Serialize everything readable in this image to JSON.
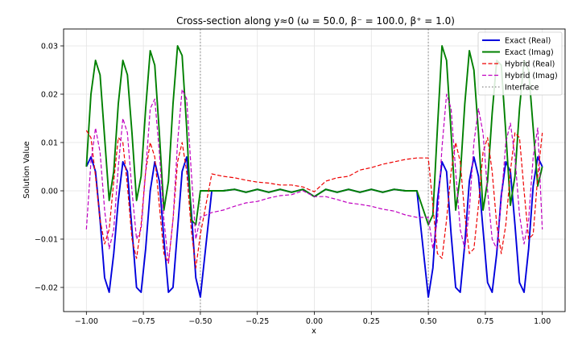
{
  "chart_data": {
    "type": "line",
    "title": "Cross-section along y≈0 (ω = 50.0, β⁻ = 100.0, β⁺ = 1.0)",
    "xlabel": "x",
    "ylabel": "Solution Value",
    "xlim": [
      -1.1,
      1.1
    ],
    "ylim": [
      -0.025,
      0.0335
    ],
    "xticks": [
      -1.0,
      -0.75,
      -0.5,
      -0.25,
      0.0,
      0.25,
      0.5,
      0.75,
      1.0
    ],
    "xtick_labels": [
      "−1.00",
      "−0.75",
      "−0.50",
      "−0.25",
      "0.00",
      "0.25",
      "0.50",
      "0.75",
      "1.00"
    ],
    "yticks": [
      -0.02,
      -0.01,
      0.0,
      0.01,
      0.02,
      0.03
    ],
    "ytick_labels": [
      "−0.02",
      "−0.01",
      "0.00",
      "0.01",
      "0.02",
      "0.03"
    ],
    "grid": true,
    "legend_position": "top-right",
    "interface_x": [
      -0.5,
      0.5
    ],
    "series": [
      {
        "name": "Exact (Real)",
        "color": "#0000dd",
        "style": "solid",
        "x": [
          -1.0,
          -0.98,
          -0.96,
          -0.94,
          -0.92,
          -0.9,
          -0.88,
          -0.86,
          -0.84,
          -0.82,
          -0.8,
          -0.78,
          -0.76,
          -0.74,
          -0.72,
          -0.7,
          -0.68,
          -0.66,
          -0.64,
          -0.62,
          -0.6,
          -0.58,
          -0.56,
          -0.54,
          -0.52,
          -0.5,
          -0.45,
          -0.4,
          -0.35,
          -0.3,
          -0.25,
          -0.2,
          -0.15,
          -0.1,
          -0.05,
          0.0,
          0.05,
          0.1,
          0.15,
          0.2,
          0.25,
          0.3,
          0.35,
          0.4,
          0.45,
          0.5,
          0.52,
          0.54,
          0.56,
          0.58,
          0.6,
          0.62,
          0.64,
          0.66,
          0.68,
          0.7,
          0.72,
          0.74,
          0.76,
          0.78,
          0.8,
          0.82,
          0.84,
          0.86,
          0.88,
          0.9,
          0.92,
          0.94,
          0.96,
          0.98,
          1.0
        ],
        "y": [
          0.005,
          0.007,
          0.004,
          -0.006,
          -0.018,
          -0.021,
          -0.013,
          -0.002,
          0.006,
          0.004,
          -0.008,
          -0.02,
          -0.021,
          -0.012,
          0.0,
          0.006,
          0.002,
          -0.01,
          -0.021,
          -0.02,
          -0.008,
          0.004,
          0.007,
          -0.004,
          -0.018,
          -0.022,
          0.0,
          0.0,
          0.0003,
          -0.0003,
          0.0003,
          -0.0003,
          0.0003,
          -0.0003,
          0.0003,
          -0.0012,
          0.0003,
          -0.0003,
          0.0003,
          -0.0003,
          0.0003,
          -0.0003,
          0.0003,
          0.0,
          0.0,
          -0.022,
          -0.016,
          -0.002,
          0.006,
          0.004,
          -0.009,
          -0.02,
          -0.021,
          -0.011,
          0.002,
          0.007,
          0.003,
          -0.008,
          -0.019,
          -0.021,
          -0.013,
          -0.001,
          0.006,
          0.004,
          -0.007,
          -0.019,
          -0.021,
          -0.012,
          0.001,
          0.007,
          0.005
        ]
      },
      {
        "name": "Exact (Imag)",
        "color": "#008000",
        "style": "solid",
        "x": [
          -1.0,
          -0.98,
          -0.96,
          -0.94,
          -0.92,
          -0.9,
          -0.88,
          -0.86,
          -0.84,
          -0.82,
          -0.8,
          -0.78,
          -0.76,
          -0.74,
          -0.72,
          -0.7,
          -0.68,
          -0.66,
          -0.64,
          -0.62,
          -0.6,
          -0.58,
          -0.56,
          -0.54,
          -0.52,
          -0.5,
          -0.45,
          -0.4,
          -0.35,
          -0.3,
          -0.25,
          -0.2,
          -0.15,
          -0.1,
          -0.05,
          0.0,
          0.05,
          0.1,
          0.15,
          0.2,
          0.25,
          0.3,
          0.35,
          0.4,
          0.45,
          0.5,
          0.52,
          0.54,
          0.56,
          0.58,
          0.6,
          0.62,
          0.64,
          0.66,
          0.68,
          0.7,
          0.72,
          0.74,
          0.76,
          0.78,
          0.8,
          0.82,
          0.84,
          0.86,
          0.88,
          0.9,
          0.92,
          0.94,
          0.96,
          0.98,
          1.0
        ],
        "y": [
          0.005,
          0.02,
          0.027,
          0.024,
          0.011,
          -0.002,
          0.004,
          0.018,
          0.027,
          0.024,
          0.012,
          -0.002,
          0.003,
          0.017,
          0.029,
          0.026,
          0.012,
          -0.004,
          0.002,
          0.018,
          0.03,
          0.028,
          0.013,
          -0.006,
          -0.007,
          0.0,
          0.0,
          0.0,
          0.0003,
          -0.0003,
          0.0003,
          -0.0003,
          0.0003,
          -0.0003,
          0.0003,
          -0.0012,
          0.0003,
          -0.0003,
          0.0003,
          -0.0003,
          0.0003,
          -0.0003,
          0.0003,
          0.0,
          0.0,
          -0.007,
          -0.005,
          0.013,
          0.03,
          0.027,
          0.012,
          -0.004,
          0.003,
          0.018,
          0.029,
          0.025,
          0.012,
          -0.004,
          0.002,
          0.016,
          0.027,
          0.026,
          0.012,
          -0.003,
          0.003,
          0.017,
          0.027,
          0.025,
          0.013,
          0.001,
          0.005
        ]
      },
      {
        "name": "Hybrid (Real)",
        "color": "#ee0000",
        "style": "dashed",
        "x": [
          -1.0,
          -0.98,
          -0.96,
          -0.94,
          -0.92,
          -0.9,
          -0.88,
          -0.86,
          -0.84,
          -0.82,
          -0.8,
          -0.78,
          -0.76,
          -0.74,
          -0.72,
          -0.7,
          -0.68,
          -0.66,
          -0.64,
          -0.62,
          -0.6,
          -0.58,
          -0.56,
          -0.54,
          -0.52,
          -0.5,
          -0.45,
          -0.4,
          -0.35,
          -0.3,
          -0.25,
          -0.2,
          -0.15,
          -0.1,
          -0.05,
          0.0,
          0.05,
          0.1,
          0.15,
          0.2,
          0.25,
          0.3,
          0.35,
          0.4,
          0.45,
          0.5,
          0.52,
          0.54,
          0.56,
          0.58,
          0.6,
          0.62,
          0.64,
          0.66,
          0.68,
          0.7,
          0.72,
          0.74,
          0.76,
          0.78,
          0.8,
          0.82,
          0.84,
          0.86,
          0.88,
          0.9,
          0.92,
          0.94,
          0.96,
          0.98,
          1.0
        ],
        "y": [
          0.0125,
          0.011,
          0.003,
          -0.006,
          -0.011,
          -0.008,
          0.002,
          0.011,
          0.01,
          0.001,
          -0.01,
          -0.014,
          -0.007,
          0.004,
          0.01,
          0.007,
          -0.003,
          -0.013,
          -0.015,
          -0.006,
          0.006,
          0.01,
          0.004,
          -0.008,
          -0.016,
          -0.009,
          0.0035,
          0.003,
          0.0027,
          0.0022,
          0.0018,
          0.0016,
          0.0012,
          0.0012,
          0.0008,
          -0.0002,
          0.002,
          0.0027,
          0.003,
          0.0043,
          0.0048,
          0.0055,
          0.006,
          0.0065,
          0.0068,
          0.0068,
          -0.003,
          -0.013,
          -0.014,
          -0.006,
          0.004,
          0.01,
          0.006,
          -0.005,
          -0.013,
          -0.012,
          -0.003,
          0.008,
          0.011,
          0.004,
          -0.007,
          -0.013,
          -0.007,
          0.004,
          0.012,
          0.011,
          0.0,
          -0.01,
          -0.009,
          0.003,
          0.012
        ]
      },
      {
        "name": "Hybrid (Imag)",
        "color": "#c000c0",
        "style": "dashed",
        "x": [
          -1.0,
          -0.98,
          -0.96,
          -0.94,
          -0.92,
          -0.9,
          -0.88,
          -0.86,
          -0.84,
          -0.82,
          -0.8,
          -0.78,
          -0.76,
          -0.74,
          -0.72,
          -0.7,
          -0.68,
          -0.66,
          -0.64,
          -0.62,
          -0.6,
          -0.58,
          -0.56,
          -0.54,
          -0.52,
          -0.5,
          -0.45,
          -0.4,
          -0.35,
          -0.3,
          -0.25,
          -0.2,
          -0.15,
          -0.1,
          -0.05,
          0.0,
          0.05,
          0.1,
          0.15,
          0.2,
          0.25,
          0.3,
          0.35,
          0.4,
          0.45,
          0.5,
          0.52,
          0.54,
          0.56,
          0.58,
          0.6,
          0.62,
          0.64,
          0.66,
          0.68,
          0.7,
          0.72,
          0.74,
          0.76,
          0.78,
          0.8,
          0.82,
          0.84,
          0.86,
          0.88,
          0.9,
          0.92,
          0.94,
          0.96,
          0.98,
          1.0
        ],
        "y": [
          -0.008,
          0.006,
          0.013,
          0.008,
          -0.004,
          -0.012,
          -0.008,
          0.005,
          0.015,
          0.012,
          0.0,
          -0.01,
          -0.008,
          0.004,
          0.017,
          0.019,
          0.008,
          -0.006,
          -0.015,
          -0.006,
          0.01,
          0.021,
          0.019,
          0.004,
          -0.01,
          -0.0055,
          -0.0045,
          -0.004,
          -0.0032,
          -0.0025,
          -0.0022,
          -0.0015,
          -0.001,
          -0.0008,
          0.0,
          -0.0012,
          -0.0012,
          -0.0018,
          -0.0025,
          -0.0028,
          -0.0032,
          -0.0038,
          -0.0042,
          -0.005,
          -0.0055,
          -0.0055,
          -0.012,
          -0.006,
          0.009,
          0.02,
          0.017,
          0.004,
          -0.008,
          -0.012,
          -0.004,
          0.01,
          0.017,
          0.012,
          0.0,
          -0.01,
          -0.012,
          -0.002,
          0.01,
          0.014,
          0.007,
          -0.005,
          -0.011,
          -0.006,
          0.007,
          0.013,
          -0.008
        ]
      }
    ],
    "legend": [
      {
        "label": "Exact (Real)",
        "color": "#0000dd",
        "style": "solid"
      },
      {
        "label": "Exact (Imag)",
        "color": "#008000",
        "style": "solid"
      },
      {
        "label": "Hybrid (Real)",
        "color": "#ee0000",
        "style": "dashed"
      },
      {
        "label": "Hybrid (Imag)",
        "color": "#c000c0",
        "style": "dashed"
      },
      {
        "label": "Interface",
        "color": "#888888",
        "style": "dotted"
      }
    ]
  }
}
